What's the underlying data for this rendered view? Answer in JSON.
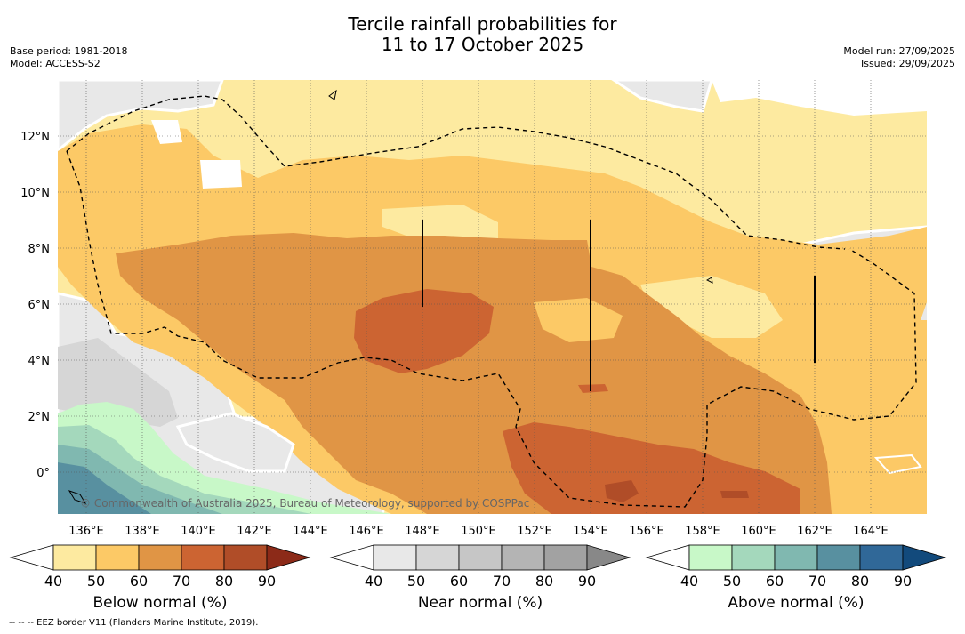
{
  "header": {
    "title_line1": "Tercile rainfall probabilities for",
    "title_line2": "11 to 17 October 2025",
    "base_period": "Base period: 1981-2018",
    "model": "Model: ACCESS-S2",
    "model_run": "Model run: 27/09/2025",
    "issued": "Issued: 29/09/2025"
  },
  "map": {
    "lon_labels": [
      "136°E",
      "138°E",
      "140°E",
      "142°E",
      "144°E",
      "146°E",
      "148°E",
      "150°E",
      "152°E",
      "154°E",
      "156°E",
      "158°E",
      "160°E",
      "162°E",
      "164°E"
    ],
    "lat_labels": [
      "12°N",
      "10°N",
      "8°N",
      "6°N",
      "4°N",
      "2°N",
      "0°"
    ],
    "copyright": "© Commonwealth of Australia 2025, Bureau of Meteorology, supported by COSPPac"
  },
  "colorbars": [
    {
      "label": "Below normal (%)",
      "ticks": [
        "40",
        "50",
        "60",
        "70",
        "80",
        "90"
      ],
      "colors": [
        "#ffffff",
        "#fdeaa0",
        "#fcc966",
        "#e09545",
        "#cc6432",
        "#b04d28",
        "#8c2a18"
      ]
    },
    {
      "label": "Near normal (%)",
      "ticks": [
        "40",
        "50",
        "60",
        "70",
        "80",
        "90"
      ],
      "colors": [
        "#ffffff",
        "#e8e8e8",
        "#d6d6d6",
        "#c6c6c6",
        "#b4b4b4",
        "#a2a2a2",
        "#888888"
      ]
    },
    {
      "label": "Above normal (%)",
      "ticks": [
        "40",
        "50",
        "60",
        "70",
        "80",
        "90"
      ],
      "colors": [
        "#ffffff",
        "#c8f8c8",
        "#a4d8bc",
        "#80b8b0",
        "#5890a0",
        "#306898",
        "#124a7c"
      ]
    }
  ],
  "footnote": "--  --  -- EEZ border V11 (Flanders Marine Institute, 2019).",
  "colors": {
    "below_50": "#fdeaa0",
    "below_60": "#fcc966",
    "below_70": "#e09545",
    "below_80": "#cc6432",
    "below_90": "#b04d28",
    "near_50": "#e8e8e8",
    "near_60": "#d6d6d6",
    "above_50": "#c8f8c8",
    "above_60": "#a4d8bc",
    "above_70": "#80b8b0",
    "above_80": "#5890a0"
  }
}
